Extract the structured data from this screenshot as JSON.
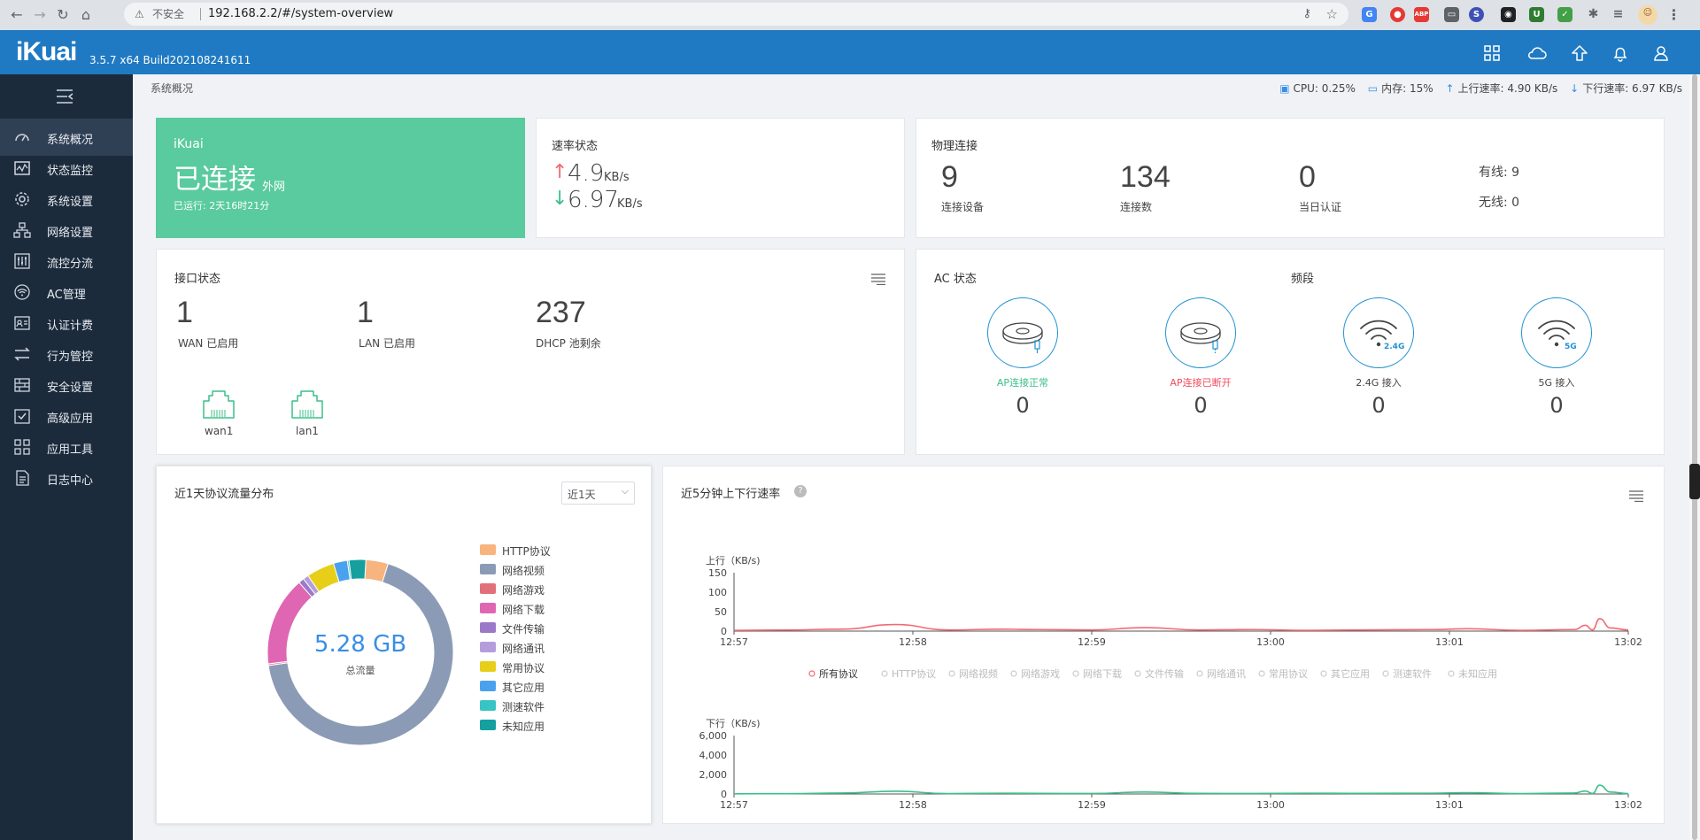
{
  "browser": {
    "insecure_label": "不安全",
    "url": "192.168.2.2/#/system-overview"
  },
  "header": {
    "logo": "iKuai",
    "version": "3.5.7 x64 Build202108241611"
  },
  "sidebar": {
    "items": [
      {
        "label": "系统概况",
        "icon": "dashboard-icon",
        "active": true
      },
      {
        "label": "状态监控",
        "icon": "monitor-icon"
      },
      {
        "label": "系统设置",
        "icon": "gear-icon"
      },
      {
        "label": "网络设置",
        "icon": "network-icon"
      },
      {
        "label": "流控分流",
        "icon": "sliders-icon"
      },
      {
        "label": "AC管理",
        "icon": "wifi-icon"
      },
      {
        "label": "认证计费",
        "icon": "id-card-icon"
      },
      {
        "label": "行为管控",
        "icon": "arrows-icon"
      },
      {
        "label": "安全设置",
        "icon": "firewall-icon"
      },
      {
        "label": "高级应用",
        "icon": "checkbox-icon"
      },
      {
        "label": "应用工具",
        "icon": "apps-icon"
      },
      {
        "label": "日志中心",
        "icon": "document-icon"
      }
    ]
  },
  "breadcrumb": "系统概况",
  "status": {
    "cpu": "CPU: 0.25%",
    "memory": "内存: 15%",
    "upload": "上行速率: 4.90 KB/s",
    "download": "下行速率: 6.97 KB/s"
  },
  "connection": {
    "brand": "iKuai",
    "state": "已连接",
    "state_sub": "外网",
    "uptime": "已运行: 2天16时21分"
  },
  "speed": {
    "title": "速率状态",
    "up_value": "4.9",
    "down_value": "6.97",
    "unit": "KB/s"
  },
  "physical": {
    "title": "物理连接",
    "devices_value": "9",
    "devices_label": "连接设备",
    "connections_value": "134",
    "connections_label": "连接数",
    "auth_value": "0",
    "auth_label": "当日认证",
    "wired": "有线: 9",
    "wireless": "无线: 0"
  },
  "interfaces": {
    "title": "接口状态",
    "wan_value": "1",
    "wan_label": "WAN 已启用",
    "lan_value": "1",
    "lan_label": "LAN 已启用",
    "dhcp_value": "237",
    "dhcp_label": "DHCP 池剩余",
    "ports": [
      "wan1",
      "lan1"
    ]
  },
  "ac": {
    "title": "AC 状态",
    "band_title": "频段",
    "items": [
      {
        "label": "AP连接正常",
        "value": "0",
        "color": "#3cbf8a",
        "icon": "ap-connected-icon"
      },
      {
        "label": "AP连接已断开",
        "value": "0",
        "color": "#f04b5c",
        "icon": "ap-disconnected-icon"
      },
      {
        "label": "2.4G 接入",
        "value": "0",
        "color": "#444444",
        "icon": "wifi-2-4g-icon",
        "badge": "2.4G"
      },
      {
        "label": "5G 接入",
        "value": "0",
        "color": "#444444",
        "icon": "wifi-5g-icon",
        "badge": "5G"
      }
    ]
  },
  "protocol": {
    "title": "近1天协议流量分布",
    "range": "近1天",
    "total": "5.28 GB",
    "total_label": "总流量"
  },
  "rate": {
    "title": "近5分钟上下行速率",
    "upper_label": "上行（KB/s)",
    "lower_label": "下行（KB/s)",
    "legend": [
      "所有协议",
      "HTTP协议",
      "网络视频",
      "网络游戏",
      "网络下载",
      "文件传输",
      "网络通讯",
      "常用协议",
      "其它应用",
      "测速软件",
      "未知应用"
    ]
  },
  "chart_data": [
    {
      "type": "pie",
      "title": "近1天协议流量分布",
      "categories": [
        "HTTP协议",
        "网络视频",
        "网络游戏",
        "网络下载",
        "文件传输",
        "网络通讯",
        "常用协议",
        "其它应用",
        "测速软件",
        "未知应用"
      ],
      "values": [
        4,
        70,
        0.3,
        16,
        1,
        1,
        5,
        2.5,
        0.3,
        3
      ],
      "colors": [
        "#f8b47e",
        "#8c9bb5",
        "#e2707a",
        "#de66b2",
        "#9b79c9",
        "#b59ddd",
        "#e7cf19",
        "#4aa2ef",
        "#38c4c4",
        "#159f9f"
      ],
      "center_text": "5.28 GB"
    },
    {
      "type": "line",
      "ylabel": "上行（KB/s)",
      "x_ticks": [
        "12:57",
        "12:58",
        "12:59",
        "13:00",
        "13:01",
        "13:02"
      ],
      "x": [
        0,
        0.3,
        0.6,
        0.9,
        1.2,
        1.5,
        1.7,
        2.0,
        2.3,
        2.6,
        2.9,
        3.2,
        3.5,
        3.9,
        4.1,
        4.4,
        4.7,
        4.76,
        4.8,
        4.84,
        4.9,
        5.0
      ],
      "yticks": [
        0,
        50,
        100,
        150
      ],
      "ylim": [
        0,
        150
      ],
      "series": [
        {
          "name": "所有协议",
          "color": "#f26a72",
          "values": [
            2,
            3,
            5,
            17,
            3,
            5,
            4,
            3,
            9,
            3,
            4,
            2,
            3,
            4,
            6,
            2,
            4,
            15,
            3,
            32,
            8,
            3
          ]
        }
      ]
    },
    {
      "type": "line",
      "ylabel": "下行（KB/s)",
      "x_ticks": [
        "12:57",
        "12:58",
        "12:59",
        "13:00",
        "13:01",
        "13:02"
      ],
      "x": [
        0,
        0.3,
        0.6,
        0.9,
        1.2,
        1.5,
        1.7,
        2.0,
        2.3,
        2.6,
        2.9,
        3.2,
        3.5,
        3.9,
        4.1,
        4.4,
        4.7,
        4.76,
        4.8,
        4.84,
        4.9,
        5.0
      ],
      "yticks": [
        0,
        2000,
        4000,
        6000
      ],
      "ylim": [
        0,
        6000
      ],
      "series": [
        {
          "name": "所有协议",
          "color": "#3cbf8a",
          "values": [
            20,
            30,
            100,
            280,
            40,
            80,
            60,
            50,
            200,
            60,
            50,
            80,
            60,
            80,
            130,
            40,
            100,
            300,
            50,
            900,
            200,
            40
          ]
        }
      ]
    }
  ]
}
